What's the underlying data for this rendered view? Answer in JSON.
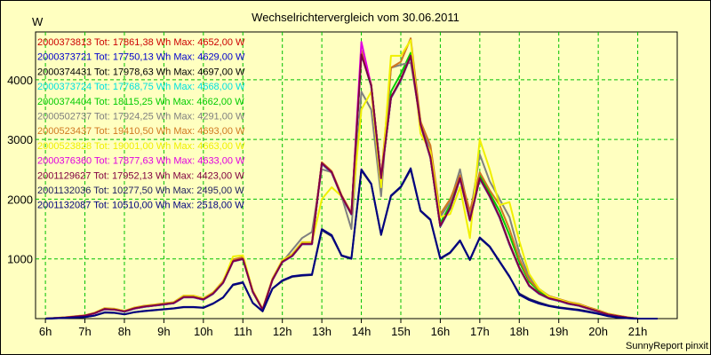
{
  "chart_data": {
    "type": "line",
    "title": "Wechselrichtervergleich vom 30.06.2011",
    "ylabel": "W",
    "ylim": [
      0,
      4800
    ],
    "xlim": [
      5.75,
      22.0
    ],
    "grid": true,
    "legend_placement": "top-left",
    "yticks": [
      1000,
      2000,
      3000,
      4000
    ],
    "xticks": [
      {
        "x": 6,
        "label": "6h"
      },
      {
        "x": 7,
        "label": "7h"
      },
      {
        "x": 8,
        "label": "8h"
      },
      {
        "x": 9,
        "label": "9h"
      },
      {
        "x": 10,
        "label": "10h"
      },
      {
        "x": 11,
        "label": "11h"
      },
      {
        "x": 12,
        "label": "12h"
      },
      {
        "x": 13,
        "label": "13h"
      },
      {
        "x": 14,
        "label": "14h"
      },
      {
        "x": 15,
        "label": "15h"
      },
      {
        "x": 16,
        "label": "16h"
      },
      {
        "x": 17,
        "label": "17h"
      },
      {
        "x": 18,
        "label": "18h"
      },
      {
        "x": 19,
        "label": "19h"
      },
      {
        "x": 20,
        "label": "20h"
      },
      {
        "x": 21,
        "label": "21h"
      }
    ],
    "x": [
      6,
      6.5,
      7,
      7.25,
      7.5,
      7.75,
      8,
      8.25,
      8.5,
      8.75,
      9,
      9.25,
      9.5,
      9.75,
      10,
      10.25,
      10.5,
      10.75,
      11,
      11.25,
      11.5,
      11.75,
      12,
      12.25,
      12.5,
      12.75,
      13,
      13.25,
      13.5,
      13.75,
      14,
      14.25,
      14.5,
      14.75,
      15,
      15.25,
      15.5,
      15.75,
      16,
      16.25,
      16.5,
      16.75,
      17,
      17.25,
      17.5,
      17.75,
      18,
      18.25,
      18.5,
      18.75,
      19,
      19.25,
      19.5,
      19.75,
      20,
      20.25,
      20.5,
      20.75,
      21,
      21.25,
      21.5
    ],
    "series": [
      {
        "name": "2000373813",
        "label": "2000373813 Tot: 17861,38 Wh Max: 4652,00 W",
        "color": "#cc0000",
        "values": [
          0,
          20,
          50,
          90,
          160,
          150,
          120,
          170,
          200,
          220,
          240,
          260,
          360,
          360,
          320,
          420,
          600,
          960,
          1000,
          450,
          150,
          650,
          950,
          1050,
          1250,
          1250,
          2600,
          2450,
          2050,
          1750,
          4450,
          3900,
          2350,
          3700,
          4000,
          4400,
          3250,
          2700,
          1550,
          1850,
          2350,
          1650,
          2350,
          2050,
          1700,
          1250,
          850,
          550,
          420,
          340,
          300,
          250,
          220,
          170,
          120,
          70,
          40,
          15,
          0,
          0,
          0
        ]
      },
      {
        "name": "2000373721",
        "label": "2000373721 Tot: 17750,13 Wh Max: 4629,00 W",
        "color": "#0000cc",
        "values": [
          0,
          20,
          50,
          90,
          155,
          150,
          115,
          165,
          195,
          215,
          235,
          255,
          355,
          355,
          315,
          415,
          595,
          955,
          995,
          445,
          145,
          645,
          945,
          1045,
          1245,
          1245,
          2590,
          2440,
          2040,
          1740,
          4430,
          3890,
          2340,
          3690,
          3990,
          4390,
          3240,
          2690,
          1540,
          1840,
          2340,
          1640,
          2340,
          2040,
          1690,
          1240,
          845,
          545,
          415,
          335,
          295,
          245,
          215,
          165,
          115,
          65,
          35,
          12,
          0,
          0,
          0
        ]
      },
      {
        "name": "2000374431",
        "label": "2000374431 Tot: 17978,63 Wh Max: 4697,00 W",
        "color": "#000000",
        "values": [
          0,
          20,
          50,
          92,
          162,
          152,
          122,
          172,
          202,
          222,
          242,
          262,
          362,
          362,
          322,
          422,
          602,
          965,
          1005,
          452,
          152,
          652,
          955,
          1055,
          1255,
          1255,
          2605,
          2455,
          2055,
          1755,
          4455,
          3905,
          2355,
          3705,
          4005,
          4405,
          3255,
          2705,
          1555,
          1855,
          2355,
          1655,
          2355,
          2055,
          1705,
          1255,
          855,
          555,
          425,
          345,
          305,
          255,
          225,
          175,
          125,
          75,
          45,
          18,
          0,
          0,
          0
        ]
      },
      {
        "name": "2000373724",
        "label": "2000373724 Tot: 17768,75 Wh Max: 4668,00 W",
        "color": "#00e0e0",
        "values": [
          0,
          20,
          50,
          90,
          158,
          150,
          118,
          168,
          198,
          218,
          238,
          258,
          358,
          358,
          318,
          418,
          598,
          958,
          998,
          448,
          148,
          648,
          948,
          1048,
          1248,
          1248,
          2595,
          2445,
          2045,
          1745,
          4440,
          3895,
          2345,
          3695,
          3995,
          4395,
          3245,
          2695,
          1545,
          1845,
          2345,
          1645,
          2345,
          2045,
          1695,
          1245,
          848,
          548,
          418,
          338,
          298,
          248,
          218,
          168,
          118,
          68,
          38,
          14,
          0,
          0,
          0
        ]
      },
      {
        "name": "2000374404",
        "label": "2000374404 Tot: 18115,25 Wh Max: 4662,00 W",
        "color": "#00cc00",
        "values": [
          0,
          20,
          50,
          95,
          165,
          155,
          125,
          175,
          205,
          225,
          245,
          265,
          365,
          365,
          325,
          425,
          610,
          970,
          1010,
          455,
          155,
          655,
          960,
          1060,
          1260,
          1260,
          2610,
          2460,
          2060,
          1760,
          4460,
          3910,
          2360,
          3800,
          4100,
          4450,
          3300,
          2750,
          1600,
          1900,
          2400,
          1700,
          2400,
          2100,
          1800,
          1400,
          950,
          620,
          460,
          360,
          310,
          260,
          230,
          180,
          130,
          80,
          48,
          20,
          0,
          0,
          0
        ]
      },
      {
        "name": "2000502737",
        "label": "2000502737 Tot: 17924,25 Wh Max: 4291,00 W",
        "color": "#808080",
        "values": [
          0,
          20,
          50,
          90,
          160,
          150,
          120,
          170,
          200,
          220,
          240,
          260,
          360,
          360,
          320,
          420,
          600,
          960,
          1000,
          450,
          150,
          650,
          950,
          1150,
          1350,
          1450,
          2500,
          2450,
          2050,
          1500,
          3800,
          3500,
          2050,
          4200,
          4250,
          4291,
          3300,
          2800,
          1700,
          1950,
          2500,
          1700,
          2750,
          2300,
          2000,
          1700,
          1100,
          700,
          500,
          380,
          320,
          260,
          220,
          170,
          120,
          70,
          40,
          15,
          0,
          0,
          0
        ]
      },
      {
        "name": "2000523437",
        "label": "2000523437 Tot: 19410,50 Wh Max: 4693,00 W",
        "color": "#d07820",
        "values": [
          0,
          22,
          55,
          100,
          175,
          165,
          130,
          185,
          215,
          235,
          255,
          275,
          385,
          385,
          340,
          440,
          630,
          990,
          1030,
          470,
          160,
          670,
          980,
          1080,
          1280,
          1280,
          2620,
          2470,
          2070,
          1770,
          4490,
          3920,
          2360,
          4200,
          4300,
          4693,
          3300,
          2900,
          1750,
          2000,
          2400,
          1800,
          2450,
          2150,
          1900,
          1500,
          1000,
          650,
          480,
          380,
          330,
          280,
          250,
          190,
          140,
          85,
          50,
          22,
          0,
          0,
          0
        ]
      },
      {
        "name": "2000523828",
        "label": "2000523828 Tot: 19001,00 Wh Max: 4663,00 W",
        "color": "#f0f000",
        "values": [
          0,
          22,
          55,
          98,
          170,
          160,
          128,
          180,
          210,
          230,
          250,
          270,
          380,
          380,
          335,
          435,
          620,
          1040,
          1060,
          465,
          160,
          665,
          975,
          1075,
          1275,
          1275,
          2000,
          2200,
          2050,
          1750,
          3500,
          3800,
          2200,
          4400,
          4400,
          4663,
          3100,
          2800,
          1700,
          1750,
          2200,
          1350,
          3000,
          2500,
          1900,
          1950,
          1300,
          750,
          500,
          370,
          320,
          270,
          240,
          180,
          130,
          80,
          45,
          18,
          0,
          0,
          0
        ]
      },
      {
        "name": "2000376360",
        "label": "2000376360 Tot: 17877,63 Wh Max: 4633,00 W",
        "color": "#e000e0",
        "values": [
          0,
          20,
          50,
          90,
          160,
          150,
          120,
          170,
          200,
          220,
          240,
          260,
          360,
          360,
          320,
          420,
          600,
          960,
          1000,
          450,
          150,
          650,
          950,
          1050,
          1250,
          1250,
          2600,
          2450,
          2050,
          1750,
          4633,
          3900,
          2350,
          3700,
          4000,
          4400,
          3250,
          2700,
          1550,
          1850,
          2350,
          1650,
          2350,
          2050,
          1700,
          1250,
          850,
          550,
          420,
          340,
          300,
          250,
          220,
          170,
          120,
          70,
          40,
          15,
          0,
          0,
          0
        ]
      },
      {
        "name": "2001129627",
        "label": "2001129627 Tot: 17952,13 Wh Max: 4423,00 W",
        "color": "#800040",
        "values": [
          0,
          20,
          50,
          92,
          162,
          152,
          122,
          172,
          202,
          222,
          242,
          262,
          362,
          362,
          322,
          422,
          602,
          962,
          1002,
          452,
          152,
          652,
          952,
          1052,
          1252,
          1252,
          2602,
          2452,
          2052,
          1752,
          4423,
          3902,
          2352,
          3702,
          4002,
          4402,
          3252,
          2702,
          1552,
          1852,
          2352,
          1652,
          2352,
          2052,
          1702,
          1252,
          852,
          552,
          422,
          342,
          302,
          252,
          222,
          172,
          122,
          72,
          42,
          16,
          0,
          0,
          0
        ]
      },
      {
        "name": "2001132036",
        "label": "2001132036 Tot: 10277,50 Wh Max: 2495,00 W",
        "color": "#202060",
        "values": [
          0,
          10,
          25,
          50,
          100,
          95,
          70,
          105,
          125,
          140,
          155,
          170,
          190,
          190,
          180,
          250,
          350,
          560,
          600,
          260,
          120,
          500,
          630,
          700,
          720,
          730,
          1480,
          1380,
          1050,
          1000,
          2480,
          2250,
          1400,
          2050,
          2200,
          2495,
          1800,
          1650,
          1000,
          1100,
          1300,
          980,
          1350,
          1200,
          950,
          700,
          420,
          330,
          270,
          220,
          190,
          170,
          150,
          120,
          85,
          45,
          22,
          8,
          0,
          0,
          0
        ]
      },
      {
        "name": "2001132087",
        "label": "2001132087 Tot: 10510,00 Wh Max: 2518,00 W",
        "color": "#000080",
        "values": [
          0,
          10,
          25,
          52,
          105,
          100,
          72,
          108,
          128,
          142,
          158,
          172,
          195,
          195,
          185,
          255,
          355,
          570,
          610,
          265,
          125,
          505,
          640,
          710,
          730,
          740,
          1500,
          1400,
          1060,
          1010,
          2500,
          2260,
          1410,
          2060,
          2210,
          2518,
          1810,
          1660,
          1010,
          1110,
          1310,
          990,
          1360,
          1210,
          960,
          710,
          400,
          310,
          250,
          210,
          180,
          160,
          140,
          110,
          80,
          40,
          20,
          6,
          0,
          0,
          0
        ]
      }
    ],
    "footer": "SunnyReport pinxit"
  }
}
